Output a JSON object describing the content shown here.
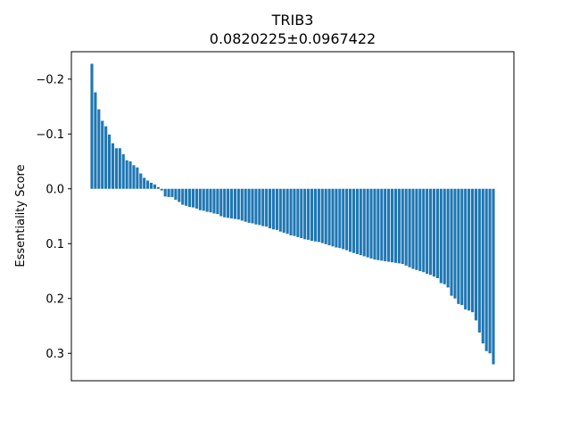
{
  "chart_data": {
    "type": "bar",
    "title": "TRIB3",
    "subtitle": "0.0820225±0.0967422",
    "xlabel": "",
    "ylabel": "Essentiality Score",
    "y_inverted": true,
    "ylim": [
      0.35,
      -0.25
    ],
    "yticks": [
      -0.2,
      -0.1,
      0.0,
      0.1,
      0.2,
      0.3
    ],
    "ytick_labels": [
      "−0.2",
      "−0.1",
      "0.0",
      "0.1",
      "0.2",
      "0.3"
    ],
    "grid": false,
    "legend": "none",
    "bar_color": "#1f77b4",
    "values": [
      -0.228,
      -0.176,
      -0.145,
      -0.124,
      -0.114,
      -0.099,
      -0.083,
      -0.074,
      -0.074,
      -0.063,
      -0.052,
      -0.05,
      -0.043,
      -0.039,
      -0.028,
      -0.02,
      -0.015,
      -0.011,
      -0.008,
      -0.003,
      0.003,
      0.014,
      0.015,
      0.015,
      0.02,
      0.024,
      0.029,
      0.031,
      0.033,
      0.034,
      0.036,
      0.039,
      0.04,
      0.042,
      0.043,
      0.045,
      0.046,
      0.05,
      0.052,
      0.053,
      0.054,
      0.055,
      0.056,
      0.058,
      0.06,
      0.062,
      0.063,
      0.065,
      0.066,
      0.068,
      0.069,
      0.072,
      0.074,
      0.075,
      0.078,
      0.08,
      0.082,
      0.085,
      0.086,
      0.088,
      0.09,
      0.092,
      0.093,
      0.095,
      0.096,
      0.097,
      0.099,
      0.101,
      0.103,
      0.105,
      0.107,
      0.108,
      0.11,
      0.112,
      0.115,
      0.117,
      0.119,
      0.121,
      0.123,
      0.125,
      0.127,
      0.129,
      0.13,
      0.131,
      0.132,
      0.133,
      0.134,
      0.135,
      0.136,
      0.137,
      0.14,
      0.143,
      0.146,
      0.148,
      0.15,
      0.152,
      0.155,
      0.157,
      0.16,
      0.163,
      0.172,
      0.174,
      0.18,
      0.195,
      0.2,
      0.21,
      0.212,
      0.22,
      0.222,
      0.225,
      0.24,
      0.262,
      0.282,
      0.296,
      0.3,
      0.32
    ]
  }
}
